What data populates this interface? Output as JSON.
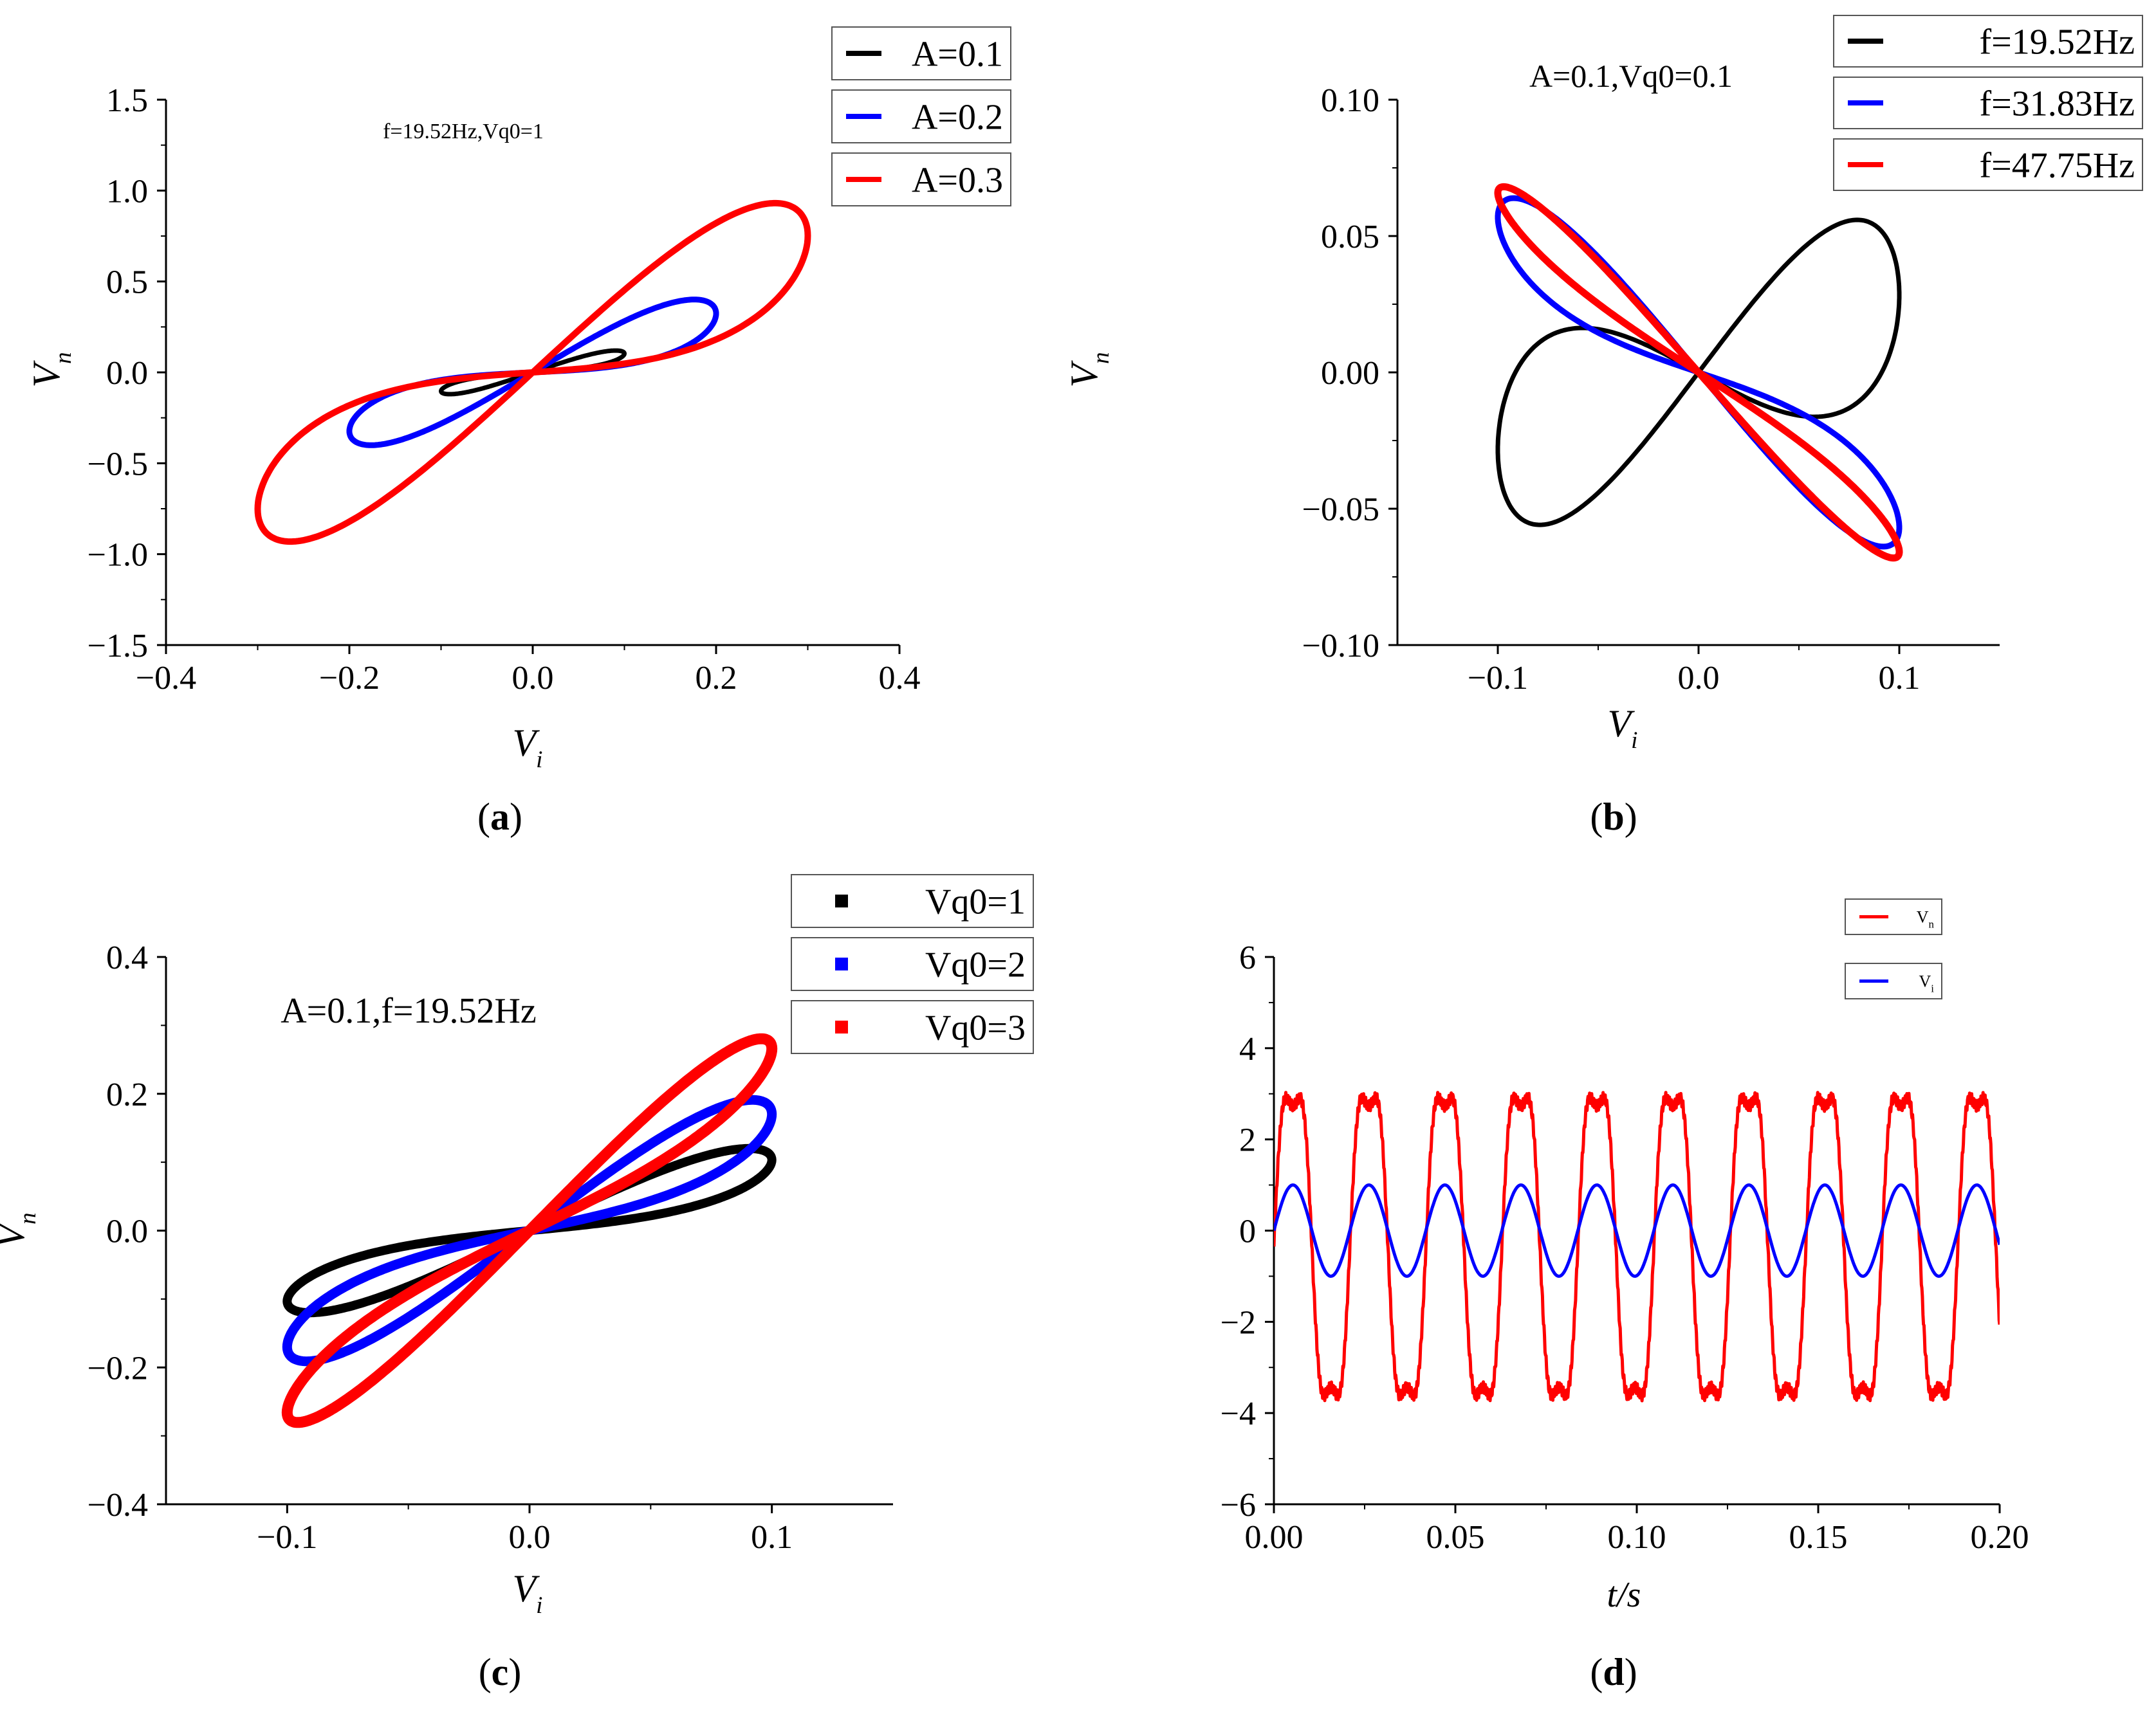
{
  "colors": {
    "black": "#000000",
    "blue": "#0000ff",
    "red": "#ff0000"
  },
  "chart_data": [
    {
      "panel_label": "a",
      "type": "line",
      "annotation": "f=19.52Hz,Vq0=1",
      "xlabel": "V",
      "xlabel_sub": "i",
      "ylabel": "V",
      "ylabel_sub": "n",
      "xlim": [
        -0.4,
        0.4
      ],
      "ylim": [
        -1.5,
        1.5
      ],
      "xticks": [
        -0.4,
        -0.2,
        0.0,
        0.2,
        0.4
      ],
      "xtick_labels": [
        "−0.4",
        "−0.2",
        "0.0",
        "0.2",
        "0.4"
      ],
      "yticks": [
        1.5,
        1.0,
        0.5,
        0.0,
        -0.5,
        -1.0,
        -1.5
      ],
      "ytick_labels": [
        "1.5",
        "1.0",
        "0.5",
        "0.0",
        "−0.5",
        "−1.0",
        "−1.5"
      ],
      "legend": {
        "position": "top-right",
        "marker": "line"
      },
      "series": [
        {
          "name": "A=0.1",
          "color": "#000000",
          "shape": "figure8",
          "amp_x": 0.1,
          "peak_x": 0.09,
          "peak_y": 0.12,
          "t_peak": 0.25,
          "width": 7
        },
        {
          "name": "A=0.2",
          "color": "#0000ff",
          "shape": "figure8",
          "amp_x": 0.2,
          "peak_x": 0.18,
          "peak_y": 0.4,
          "t_peak": 0.3,
          "width": 9
        },
        {
          "name": "A=0.3",
          "color": "#ff0000",
          "shape": "figure8",
          "amp_x": 0.3,
          "peak_x": 0.26,
          "peak_y": 0.93,
          "t_peak": 0.3,
          "width": 10
        }
      ]
    },
    {
      "panel_label": "b",
      "type": "line",
      "annotation": "A=0.1,Vq0=0.1",
      "xlabel": "V",
      "xlabel_sub": "i",
      "ylabel": "V",
      "ylabel_sub": "n",
      "xlim": [
        -0.15,
        0.15
      ],
      "ylim": [
        -0.1,
        0.1
      ],
      "xticks": [
        -0.1,
        0.0,
        0.1
      ],
      "xtick_labels": [
        "−0.1",
        "0.0",
        "0.1"
      ],
      "yticks": [
        0.1,
        0.05,
        0.0,
        -0.05,
        -0.1
      ],
      "ytick_labels": [
        "0.10",
        "0.05",
        "0.00",
        "−0.05",
        "−0.10"
      ],
      "legend": {
        "position": "top-right",
        "marker": "line"
      },
      "series": [
        {
          "name": "f=19.52Hz",
          "color": "#000000",
          "shape": "figure8",
          "amp_x": 0.1,
          "peak_x": 0.072,
          "peak_y": 0.055,
          "t_peak": 0.55,
          "width": 7
        },
        {
          "name": "f=31.83Hz",
          "color": "#0000ff",
          "shape": "figure8",
          "amp_x": 0.1,
          "peak_x": 0.098,
          "peak_y": -0.062,
          "t_peak": 0.22,
          "width": 9
        },
        {
          "name": "f=47.75Hz",
          "color": "#ff0000",
          "shape": "figure8",
          "amp_x": 0.1,
          "peak_x": 0.098,
          "peak_y": -0.068,
          "t_peak": 0.12,
          "width": 11
        }
      ]
    },
    {
      "panel_label": "c",
      "type": "scatter",
      "annotation": "A=0.1,f=19.52Hz",
      "xlabel": "V",
      "xlabel_sub": "i",
      "ylabel": "V",
      "ylabel_sub": "n",
      "xlim": [
        -0.15,
        0.15
      ],
      "ylim": [
        -0.4,
        0.4
      ],
      "xticks": [
        -0.1,
        0.0,
        0.1
      ],
      "xtick_labels": [
        "−0.1",
        "0.0",
        "0.1"
      ],
      "yticks": [
        0.4,
        0.2,
        0.0,
        -0.2,
        -0.4
      ],
      "ytick_labels": [
        "0.4",
        "0.2",
        "0.0",
        "−0.2",
        "−0.4"
      ],
      "legend": {
        "position": "top-right",
        "marker": "square"
      },
      "series": [
        {
          "name": "Vq0=1",
          "color": "#000000",
          "shape": "figure8",
          "amp_x": 0.1,
          "peak_x": 0.09,
          "peak_y": 0.12,
          "t_peak": 0.25,
          "width": 14
        },
        {
          "name": "Vq0=2",
          "color": "#0000ff",
          "shape": "figure8",
          "amp_x": 0.1,
          "peak_x": 0.095,
          "peak_y": 0.19,
          "t_peak": 0.22,
          "width": 15
        },
        {
          "name": "Vq0=3",
          "color": "#ff0000",
          "shape": "figure8",
          "amp_x": 0.1,
          "peak_x": 0.097,
          "peak_y": 0.28,
          "t_peak": 0.15,
          "width": 17
        }
      ]
    },
    {
      "panel_label": "d",
      "type": "line",
      "xlabel": "t/s",
      "ylabel": "",
      "xlim": [
        0.0,
        0.2
      ],
      "ylim": [
        -6,
        6
      ],
      "xticks": [
        0.0,
        0.05,
        0.1,
        0.15,
        0.2
      ],
      "xtick_labels": [
        "0.00",
        "0.05",
        "0.10",
        "0.15",
        "0.20"
      ],
      "yticks": [
        6,
        4,
        2,
        0,
        -2,
        -4,
        -6
      ],
      "ytick_labels": [
        "6",
        "4",
        "2",
        "0",
        "−2",
        "−4",
        "−6"
      ],
      "legend": {
        "position": "top-right",
        "marker": "line"
      },
      "series": [
        {
          "name": "V",
          "name_sub": "n",
          "color": "#ff0000",
          "shape": "wave",
          "frequency_hz": 47.75,
          "peak": 3.6,
          "trough": -4.3,
          "width": 5
        },
        {
          "name": "V",
          "name_sub": "i",
          "color": "#0000ff",
          "shape": "sine",
          "frequency_hz": 47.75,
          "amplitude": 1.0,
          "width": 5
        }
      ]
    }
  ]
}
